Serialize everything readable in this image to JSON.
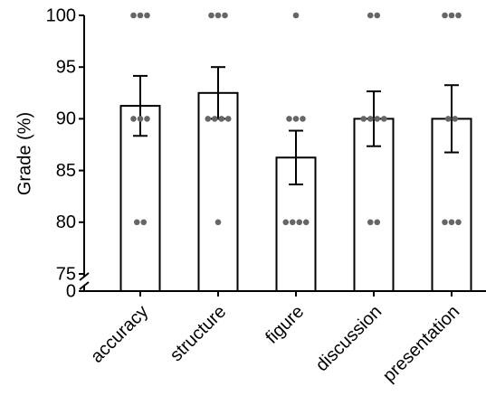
{
  "chart_data": {
    "type": "bar",
    "ylabel": "Grade (%)",
    "categories": [
      "accuracy",
      "structure",
      "figure",
      "discussion",
      "presentation"
    ],
    "values": [
      91.25,
      92.5,
      86.25,
      90,
      90
    ],
    "errors": [
      2.9,
      2.5,
      2.6,
      2.65,
      3.25
    ],
    "points": [
      [
        100,
        100,
        100,
        90,
        90,
        90,
        80,
        80
      ],
      [
        100,
        100,
        100,
        90,
        90,
        90,
        90,
        80
      ],
      [
        100,
        90,
        90,
        90,
        80,
        80,
        80,
        80
      ],
      [
        100,
        100,
        90,
        90,
        90,
        90,
        80,
        80
      ],
      [
        100,
        100,
        100,
        90,
        90,
        80,
        80,
        80
      ]
    ],
    "color": "#ffffff",
    "edgecolor": "#000000",
    "point_color": "#666666",
    "ylim": [
      0,
      100
    ],
    "y_break": [
      0,
      75
    ],
    "yticks": [
      0,
      75,
      80,
      85,
      90,
      95,
      100
    ]
  }
}
